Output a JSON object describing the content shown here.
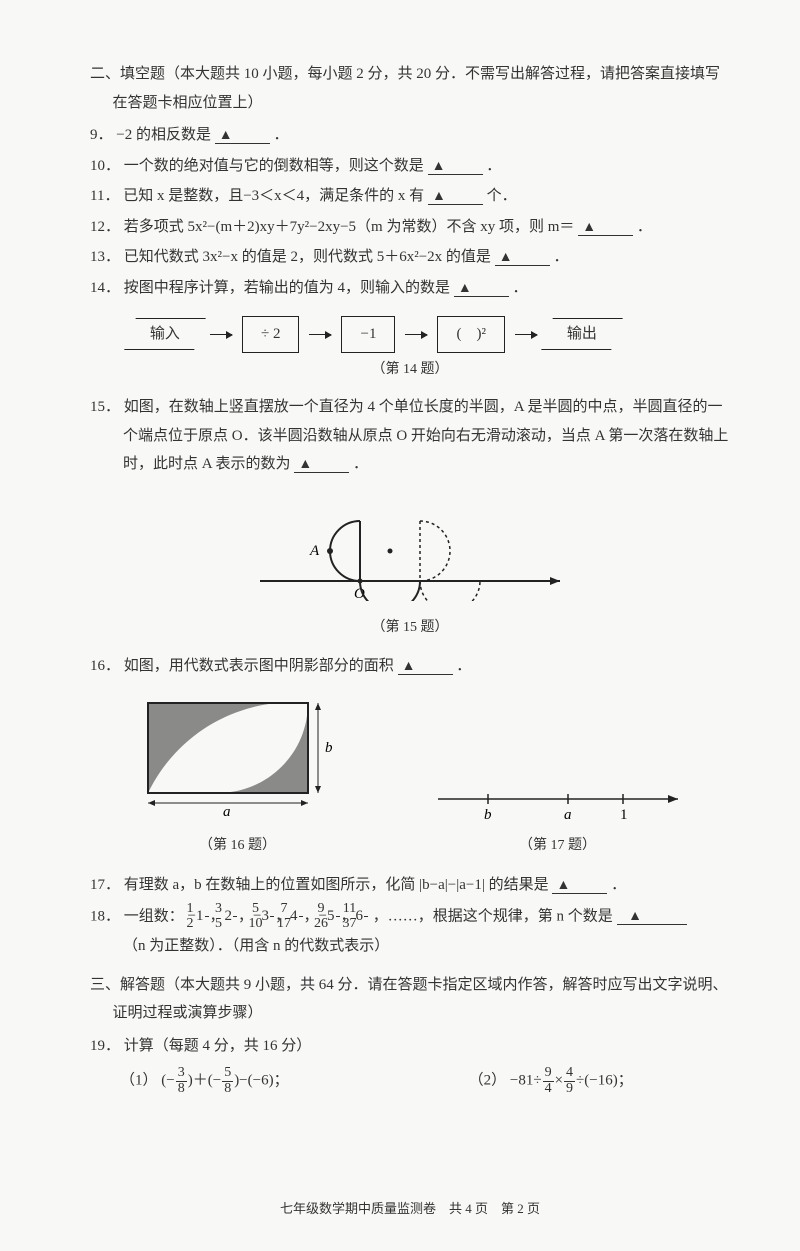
{
  "section2": {
    "heading": "二、填空题（本大题共 10 小题，每小题 2 分，共 20 分．不需写出解答过程，请把答案直接填写在答题卡相应位置上）",
    "blank_mark": "▲"
  },
  "q9": {
    "num": "9．",
    "text_a": "−2 的相反数是",
    "text_b": "．"
  },
  "q10": {
    "num": "10．",
    "text_a": "一个数的绝对值与它的倒数相等，则这个数是",
    "text_b": "．"
  },
  "q11": {
    "num": "11．",
    "text_a": "已知 x 是整数，且−3＜x＜4，满足条件的 x 有",
    "text_b": "个．"
  },
  "q12": {
    "num": "12．",
    "text_a": "若多项式 5x²−(m＋2)xy＋7y²−2xy−5（m 为常数）不含 xy 项，则 m＝",
    "text_b": "．"
  },
  "q13": {
    "num": "13．",
    "text_a": "已知代数式 3x²−x 的值是 2，则代数式 5＋6x²−2x 的值是",
    "text_b": "．"
  },
  "q14": {
    "num": "14．",
    "text_a": "按图中程序计算，若输出的值为 4，则输入的数是",
    "text_b": "．",
    "flow": {
      "in": "输入",
      "s1": "÷ 2",
      "s2": "−1",
      "s3": "(　)²",
      "out": "输出"
    },
    "caption": "（第 14 题）"
  },
  "q15": {
    "num": "15．",
    "text": "如图，在数轴上竖直摆放一个直径为 4 个单位长度的半圆，A 是半圆的中点，半圆直径的一个端点位于原点 O．该半圆沿数轴从原点 O 开始向右无滑动滚动，当点 A 第一次落在数轴上时，此时点 A 表示的数为",
    "text_b": "．",
    "label_A": "A",
    "label_O": "O",
    "caption": "（第 15 题）"
  },
  "q16": {
    "num": "16．",
    "text": "如图，用代数式表示图中阴影部分的面积",
    "text_b": "．",
    "label_a": "a",
    "label_b": "b",
    "caption": "（第 16 题）"
  },
  "q17": {
    "num": "17．",
    "text": "有理数 a，b 在数轴上的位置如图所示，化简 |b−a|−|a−1| 的结果是",
    "text_b": "．",
    "nl_b": "b",
    "nl_a": "a",
    "nl_1": "1",
    "caption": "（第 17 题）"
  },
  "q18": {
    "num": "18．",
    "prefix": "一组数：",
    "seq": [
      {
        "sign": "−",
        "w": "1",
        "n": "1",
        "d": "2"
      },
      {
        "sign": "",
        "w": "2",
        "n": "3",
        "d": "5"
      },
      {
        "sign": "−",
        "w": "3",
        "n": "5",
        "d": "10"
      },
      {
        "sign": "",
        "w": "4",
        "n": "7",
        "d": "17"
      },
      {
        "sign": "−",
        "w": "5",
        "n": "9",
        "d": "26"
      },
      {
        "sign": "",
        "w": "6",
        "n": "11",
        "d": "37"
      }
    ],
    "mid": "，……，根据这个规律，第 n 个数是",
    "tail": "（n 为正整数）．（用含 n 的代数式表示）"
  },
  "section3": {
    "heading": "三、解答题（本大题共 9 小题，共 64 分．请在答题卡指定区域内作答，解答时应写出文字说明、证明过程或演算步骤）"
  },
  "q19": {
    "num": "19．",
    "text": "计算（每题 4 分，共 16 分）",
    "p1_label": "（1）",
    "p1_expr_a": "(−",
    "p1_f1": {
      "n": "3",
      "d": "8"
    },
    "p1_expr_b": ")＋(−",
    "p1_f2": {
      "n": "5",
      "d": "8"
    },
    "p1_expr_c": ")−(−6)；",
    "p2_label": "（2）",
    "p2_expr_a": "−81÷",
    "p2_f1": {
      "n": "9",
      "d": "4"
    },
    "p2_expr_b": "×",
    "p2_f2": {
      "n": "4",
      "d": "9"
    },
    "p2_expr_c": "÷(−16)；"
  },
  "footer": "七年级数学期中质量监测卷　共 4 页　第 2 页",
  "colors": {
    "text": "#333333",
    "bg": "#f8f8f6",
    "line": "#222222",
    "shade": "#8a8a88"
  }
}
